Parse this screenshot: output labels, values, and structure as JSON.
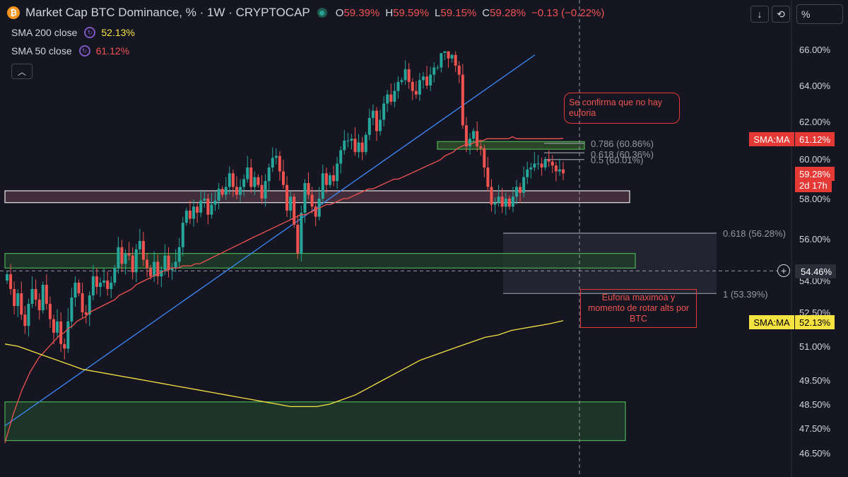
{
  "header": {
    "title": "Market Cap BTC Dominance, % · 1W · CRYPTOCAP",
    "btc_icon": "₿",
    "open_key": "O",
    "open": "59.39%",
    "high_key": "H",
    "high": "59.59%",
    "low_key": "L",
    "low": "59.15%",
    "close_key": "C",
    "close": "59.28%",
    "change": "−0.13 (−0.22%)",
    "collapse_icon": "︿"
  },
  "indicators": [
    {
      "label": "SMA 200 close",
      "value": "52.13%",
      "color": "#f5e342"
    },
    {
      "label": "SMA 50 close",
      "value": "61.12%",
      "color": "#ef5350"
    }
  ],
  "toolbar": {
    "download_icon": "↓",
    "refresh_icon": "⟲",
    "percent_label": "%"
  },
  "annotations": {
    "note1": "Se confirma que no hay euforia",
    "note2": "Euforia maximoa y momento de rotar alts por BTC"
  },
  "price_axis": {
    "ticks": [
      "66.00%",
      "64.00%",
      "62.00%",
      "60.00%",
      "58.00%",
      "56.00%",
      "54.00%",
      "52.50%",
      "51.00%",
      "49.50%",
      "48.50%",
      "47.50%",
      "46.50%"
    ],
    "sma50_badge": "SMA:MA",
    "sma50_value": "61.12%",
    "price_badge": "59.28%",
    "price_countdown": "2d 17h",
    "crosshair_icon": "+",
    "crosshair_value": "54.46%",
    "sma200_badge": "SMA:MA",
    "sma200_value": "52.13%"
  },
  "chart_data": {
    "type": "candlestick",
    "symbol": "CRYPTOCAP:BTC.D",
    "interval": "1W",
    "ohlc_last": {
      "open": 59.39,
      "high": 59.59,
      "low": 59.15,
      "close": 59.28
    },
    "closes": [
      54.3,
      53.6,
      52.8,
      53.4,
      52.4,
      51.9,
      52.9,
      53.6,
      53.1,
      52.6,
      53.8,
      52.9,
      52.2,
      51.6,
      52.1,
      51.1,
      50.9,
      52.1,
      53.2,
      53.9,
      53.4,
      52.5,
      52.4,
      53.3,
      54.2,
      53.7,
      53.9,
      54.0,
      53.6,
      53.9,
      54.6,
      55.6,
      54.8,
      55.3,
      55.2,
      54.4,
      55.5,
      55.9,
      55.0,
      54.6,
      54.2,
      54.9,
      54.2,
      54.5,
      55.2,
      54.5,
      54.6,
      54.9,
      55.6,
      56.8,
      57.4,
      57.0,
      57.6,
      57.3,
      57.9,
      58.0,
      57.2,
      57.7,
      57.9,
      58.5,
      58.2,
      58.6,
      59.3,
      58.6,
      58.2,
      58.6,
      59.0,
      59.6,
      58.6,
      59.1,
      58.7,
      58.0,
      58.9,
      59.6,
      60.1,
      60.2,
      59.4,
      58.7,
      57.4,
      58.1,
      56.7,
      55.3,
      57.3,
      58.8,
      58.2,
      57.6,
      57.1,
      58.0,
      59.3,
      58.7,
      59.2,
      58.9,
      59.8,
      60.5,
      61.0,
      61.0,
      61.1,
      60.4,
      60.9,
      60.4,
      61.3,
      62.2,
      62.6,
      61.5,
      62.1,
      63.0,
      63.5,
      63.1,
      63.7,
      64.2,
      64.3,
      64.9,
      64.2,
      63.7,
      63.5,
      64.3,
      64.5,
      64.0,
      64.6,
      65.0,
      65.0,
      65.8,
      65.9,
      65.5,
      65.7,
      65.1,
      64.6,
      61.8,
      60.7,
      61.1,
      61.5,
      60.7,
      60.6,
      59.6,
      58.6,
      57.7,
      57.8,
      58.1,
      57.6,
      58.0,
      57.6,
      58.1,
      58.6,
      58.3,
      59.1,
      59.5,
      59.6,
      59.8,
      59.8,
      59.6,
      60.0,
      59.9,
      59.7,
      59.4,
      59.5,
      59.3
    ],
    "sma50": [
      46.9,
      47.5,
      48.1,
      48.6,
      49.1,
      49.5,
      49.9,
      50.2,
      50.5,
      50.7,
      50.9,
      51.1,
      51.3,
      51.5,
      51.6,
      51.8,
      51.9,
      52.1,
      52.2,
      52.3,
      52.5,
      52.6,
      52.7,
      52.8,
      52.9,
      53.0,
      53.1,
      53.3,
      53.4,
      53.5,
      53.6,
      53.8,
      53.9,
      54.0,
      54.1,
      54.2,
      54.3,
      54.4,
      54.5,
      54.6,
      54.6,
      54.6,
      54.7,
      54.7,
      54.7,
      54.8,
      54.8,
      54.9,
      55.0,
      55.1,
      55.2,
      55.3,
      55.4,
      55.5,
      55.6,
      55.7,
      55.8,
      55.9,
      56.0,
      56.1,
      56.2,
      56.3,
      56.4,
      56.5,
      56.6,
      56.7,
      56.8,
      56.9,
      57.0,
      57.1,
      57.2,
      57.2,
      57.3,
      57.4,
      57.5,
      57.6,
      57.7,
      57.7,
      57.8,
      57.9,
      58.0,
      58.0,
      58.1,
      58.2,
      58.3,
      58.4,
      58.5,
      58.5,
      58.6,
      58.7,
      58.8,
      58.9,
      59.0,
      59.0,
      59.1,
      59.2,
      59.3,
      59.4,
      59.5,
      59.6,
      59.7,
      59.8,
      59.9,
      60.0,
      60.2,
      60.3,
      60.4,
      60.6,
      60.7,
      60.8,
      60.8,
      60.9,
      61.0,
      61.0,
      61.1,
      61.1,
      61.1,
      61.1,
      61.1,
      61.1,
      61.2,
      61.1,
      61.1,
      61.1,
      61.1,
      61.1,
      61.1,
      61.1,
      61.1,
      61.1,
      61.1,
      61.1,
      61.12
    ],
    "sma200": [
      51.1,
      51.0,
      50.8,
      50.6,
      50.4,
      50.2,
      50.0,
      49.9,
      49.8,
      49.7,
      49.6,
      49.5,
      49.4,
      49.3,
      49.2,
      49.1,
      49.0,
      48.9,
      48.8,
      48.7,
      48.6,
      48.5,
      48.4,
      48.4,
      48.4,
      48.5,
      48.7,
      48.9,
      49.2,
      49.5,
      49.8,
      50.1,
      50.4,
      50.6,
      50.8,
      51.0,
      51.2,
      51.4,
      51.5,
      51.7,
      51.8,
      51.9,
      52.0,
      52.13
    ],
    "trendline": {
      "from": 47.6,
      "to": 66.3
    },
    "zones": [
      {
        "type": "resistance",
        "low": 57.8,
        "high": 58.4
      },
      {
        "type": "support",
        "low": 54.6,
        "high": 55.3
      },
      {
        "type": "support",
        "low": 47.0,
        "high": 48.6
      },
      {
        "type": "fib-cluster",
        "low": 60.55,
        "high": 60.95
      }
    ],
    "fib_levels": [
      {
        "ratio": "0.786",
        "label": "0.786 (60.86%)",
        "value": 60.86
      },
      {
        "ratio": "0.618",
        "label": "0.618 (60.36%)",
        "value": 60.36
      },
      {
        "ratio": "0.5",
        "label": "0.5 (60.01%)",
        "value": 60.01
      },
      {
        "ratio": "0.618",
        "label": "0.618 (56.28%)",
        "value": 56.28
      },
      {
        "ratio": "1",
        "label": "1 (53.39%)",
        "value": 53.39
      }
    ],
    "crosshair_price": 54.46,
    "colors": {
      "up": "#26a69a",
      "down": "#ef5350",
      "sma50": "#ef5350",
      "sma200": "#f5e342",
      "trendline": "#3d8bfd",
      "background": "#151622"
    }
  }
}
